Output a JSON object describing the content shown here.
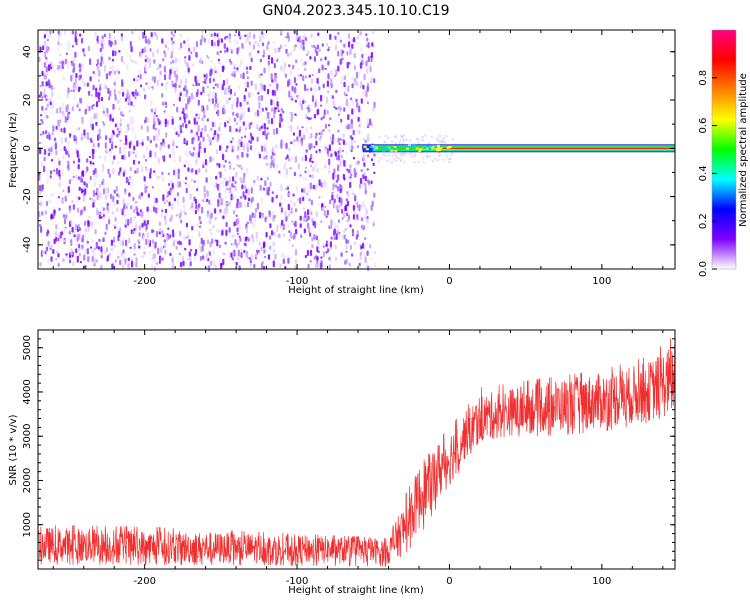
{
  "figure_title": "GN04.2023.345.10.10.C19",
  "chart_data": [
    {
      "type": "heatmap",
      "title": "",
      "xlabel": "Height of straight line (km)",
      "ylabel": "Frequency (Hz)",
      "xlim": [
        -270,
        148
      ],
      "ylim": [
        -50,
        49
      ],
      "xticks": [
        -200,
        -100,
        0,
        100
      ],
      "yticks": [
        -40,
        -20,
        0,
        20,
        40
      ],
      "noise_region_x": [
        -270,
        -48
      ],
      "tone_line": {
        "frequency": 0,
        "x_start": -57,
        "x_end": 148
      },
      "grid": false,
      "colorbar": {
        "label": "Normalized spectral amplitude",
        "range": [
          0.0,
          1.0
        ],
        "ticks": [
          0.0,
          0.2,
          0.4,
          0.6,
          0.8
        ],
        "colors": [
          "#ffffff",
          "#7f00ff",
          "#0000ff",
          "#00ffff",
          "#00ff00",
          "#ffff00",
          "#ff7f00",
          "#ff0000",
          "#ff007f"
        ]
      }
    },
    {
      "type": "line",
      "title": "",
      "xlabel": "Height of straight line (km)",
      "ylabel": "SNR (10 * v/v)",
      "xlim": [
        -270,
        148
      ],
      "ylim": [
        0,
        5400
      ],
      "xticks": [
        -200,
        -100,
        0,
        100
      ],
      "yticks": [
        1000,
        2000,
        3000,
        4000,
        5000
      ],
      "grid": false,
      "series": [
        {
          "color": "#f03030",
          "envelope": [
            {
              "x": -270,
              "low": 100,
              "high": 1000,
              "mean": 550
            },
            {
              "x": -200,
              "low": 100,
              "high": 950,
              "mean": 500
            },
            {
              "x": -100,
              "low": 80,
              "high": 800,
              "mean": 450
            },
            {
              "x": -40,
              "low": 60,
              "high": 700,
              "mean": 400
            },
            {
              "x": -30,
              "low": 300,
              "high": 1600,
              "mean": 900
            },
            {
              "x": -20,
              "low": 700,
              "high": 2300,
              "mean": 1600
            },
            {
              "x": -10,
              "low": 1300,
              "high": 2800,
              "mean": 2100
            },
            {
              "x": 0,
              "low": 1800,
              "high": 3200,
              "mean": 2500
            },
            {
              "x": 10,
              "low": 2400,
              "high": 3600,
              "mean": 3000
            },
            {
              "x": 20,
              "low": 2900,
              "high": 4100,
              "mean": 3400
            },
            {
              "x": 40,
              "low": 3000,
              "high": 4200,
              "mean": 3550
            },
            {
              "x": 60,
              "low": 3000,
              "high": 4300,
              "mean": 3650
            },
            {
              "x": 100,
              "low": 3100,
              "high": 4500,
              "mean": 3800
            },
            {
              "x": 130,
              "low": 3300,
              "high": 4800,
              "mean": 4000
            },
            {
              "x": 148,
              "low": 3500,
              "high": 5300,
              "mean": 4300
            }
          ]
        }
      ]
    }
  ]
}
